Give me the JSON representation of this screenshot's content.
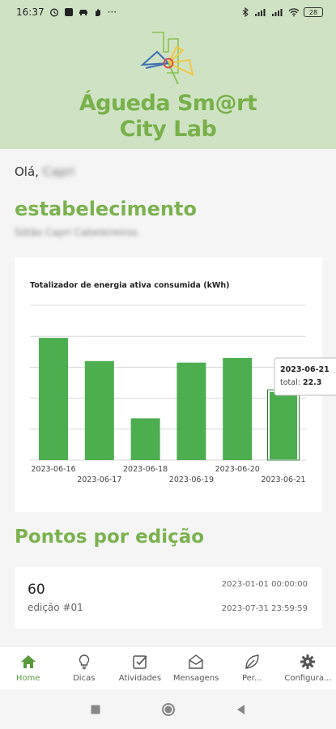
{
  "status_bar": {
    "time": "16:37",
    "battery": "28"
  },
  "header": {
    "brand_line1": "Águeda Sm@rt",
    "brand_line2": "City Lab"
  },
  "greeting": {
    "prefix": "Olá,",
    "name": "Capri"
  },
  "establishment": {
    "title": "estabelecimento",
    "name": "Sótão Capri Cabeleireiros"
  },
  "chart_data": {
    "type": "bar",
    "title": "Totalizador de energia ativa consumida (kWh)",
    "categories": [
      "2023-06-16",
      "2023-06-17",
      "2023-06-18",
      "2023-06-19",
      "2023-06-20",
      "2023-06-21"
    ],
    "values": [
      39.5,
      32,
      13.5,
      31.5,
      33,
      22.3
    ],
    "ylim": [
      0,
      50
    ],
    "grid": true,
    "highlight_index": 5,
    "tooltip": {
      "date": "2023-06-21",
      "label": "total:",
      "value": "22.3"
    },
    "colors": {
      "bar": "#4cae4f",
      "highlight_border": "#2e7d32"
    }
  },
  "points": {
    "title": "Pontos por edição",
    "value": "60",
    "edition": "edição #01",
    "start": "2023-01-01 00:00:00",
    "end": "2023-07-31 23:59:59"
  },
  "nav": {
    "items": [
      {
        "label": "Home",
        "icon": "home-icon"
      },
      {
        "label": "Dicas",
        "icon": "lightbulb-icon"
      },
      {
        "label": "Atividades",
        "icon": "checkbox-icon"
      },
      {
        "label": "Mensagens",
        "icon": "envelope-icon"
      },
      {
        "label": "Per...",
        "icon": "leaf-icon"
      },
      {
        "label": "Configura...",
        "icon": "gear-icon"
      }
    ]
  },
  "colors": {
    "brand_green": "#7bb24f",
    "header_bg": "#cfe3c4",
    "nav_active": "#5a9a3d"
  }
}
